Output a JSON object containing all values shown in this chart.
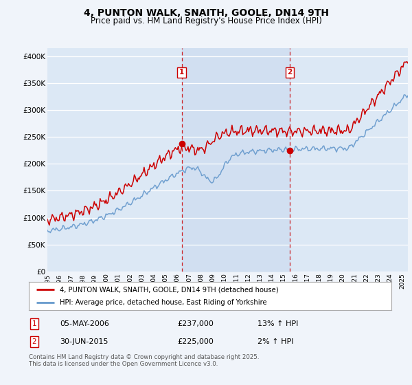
{
  "title": "4, PUNTON WALK, SNAITH, GOOLE, DN14 9TH",
  "subtitle": "Price paid vs. HM Land Registry's House Price Index (HPI)",
  "title_fontsize": 10,
  "subtitle_fontsize": 8.5,
  "ylabel_ticks": [
    "£0",
    "£50K",
    "£100K",
    "£150K",
    "£200K",
    "£250K",
    "£300K",
    "£350K",
    "£400K"
  ],
  "ytick_values": [
    0,
    50000,
    100000,
    150000,
    200000,
    250000,
    300000,
    350000,
    400000
  ],
  "ylim": [
    0,
    415000
  ],
  "xlim_start": 1995.0,
  "xlim_end": 2025.5,
  "background_color": "#f0f4fa",
  "plot_bg_color": "#dce8f5",
  "grid_color": "#ffffff",
  "shade_color": "#c8d8ee",
  "sale1_date": 2006.37,
  "sale1_price": 237000,
  "sale1_label": "1",
  "sale1_hpi_change": "13% ↑ HPI",
  "sale1_date_str": "05-MAY-2006",
  "sale2_date": 2015.5,
  "sale2_price": 225000,
  "sale2_label": "2",
  "sale2_hpi_change": "2% ↑ HPI",
  "sale2_date_str": "30-JUN-2015",
  "line1_color": "#cc0000",
  "line2_color": "#6699cc",
  "vline_color": "#cc0000",
  "legend1_text": "4, PUNTON WALK, SNAITH, GOOLE, DN14 9TH (detached house)",
  "legend2_text": "HPI: Average price, detached house, East Riding of Yorkshire",
  "footnote": "Contains HM Land Registry data © Crown copyright and database right 2025.\nThis data is licensed under the Open Government Licence v3.0.",
  "footnote_fontsize": 6.2,
  "x_tick_years": [
    1995,
    1996,
    1997,
    1998,
    1999,
    2000,
    2001,
    2002,
    2003,
    2004,
    2005,
    2006,
    2007,
    2008,
    2009,
    2010,
    2011,
    2012,
    2013,
    2014,
    2015,
    2016,
    2017,
    2018,
    2019,
    2020,
    2021,
    2022,
    2023,
    2024,
    2025
  ]
}
